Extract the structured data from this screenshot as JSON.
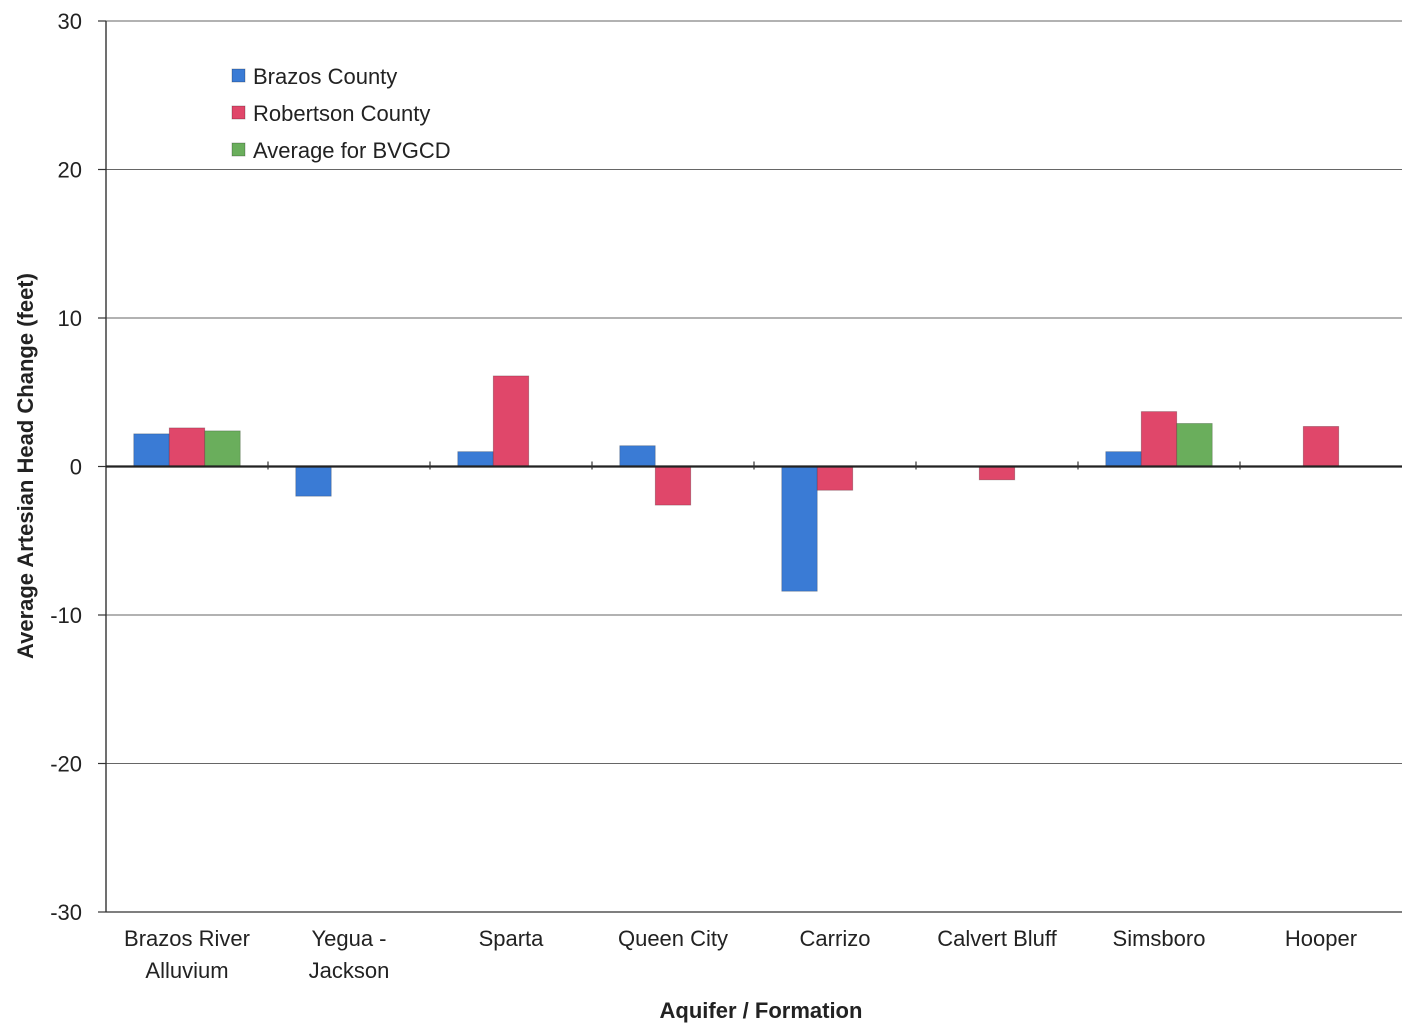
{
  "chart_data": {
    "type": "bar",
    "title": "",
    "xlabel": "Aquifer / Formation",
    "ylabel": "Average Artesian Head Change (feet)",
    "ylim": [
      -30,
      30
    ],
    "yticks": [
      30,
      20,
      10,
      0,
      -10,
      -20,
      -30
    ],
    "grid": true,
    "legend_position": "top-left",
    "categories": [
      [
        "Brazos River",
        "Alluvium"
      ],
      [
        "Yegua -",
        "Jackson"
      ],
      [
        "Sparta"
      ],
      [
        "Queen City"
      ],
      [
        "Carrizo"
      ],
      [
        "Calvert Bluff"
      ],
      [
        "Simsboro"
      ],
      [
        "Hooper"
      ]
    ],
    "series": [
      {
        "name": "Brazos County",
        "color": "#3a7bd5",
        "values": [
          2.2,
          -2.0,
          1.0,
          1.4,
          -8.4,
          null,
          1.0,
          null
        ]
      },
      {
        "name": "Robertson County",
        "color": "#e0476a",
        "values": [
          2.6,
          null,
          6.1,
          -2.6,
          -1.6,
          -0.9,
          3.7,
          2.7
        ]
      },
      {
        "name": "Average for BVGCD",
        "color": "#6aae5c",
        "values": [
          2.4,
          null,
          null,
          null,
          null,
          null,
          2.9,
          null
        ]
      }
    ]
  }
}
